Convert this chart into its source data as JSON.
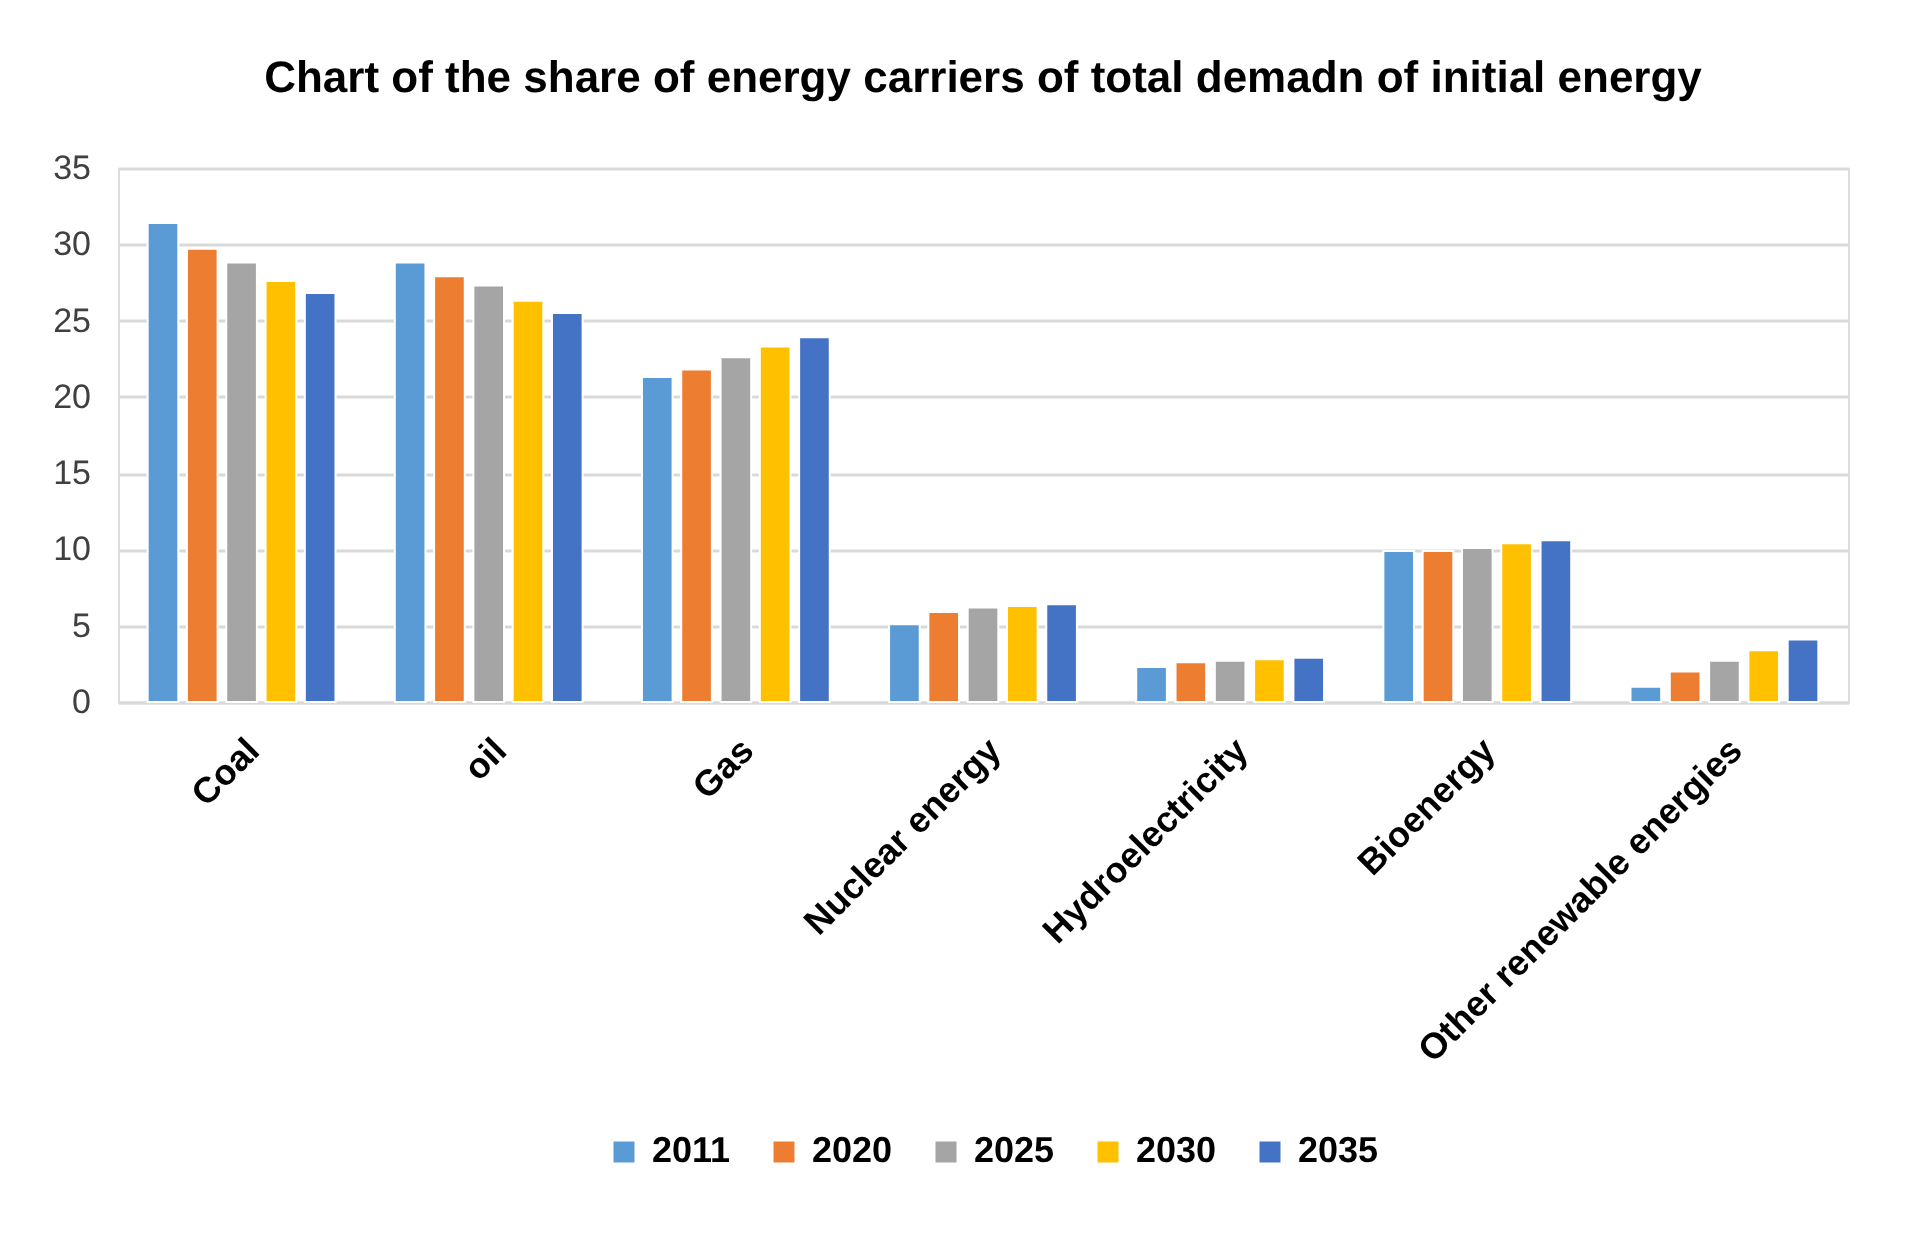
{
  "chart_data": {
    "type": "bar",
    "title": "Chart of the share of energy carriers of total demadn of initial energy",
    "categories": [
      "Coal",
      "oil",
      "Gas",
      "Nuclear energy",
      "Hydroelectricity",
      "Bioenergy",
      "Other renewable energies"
    ],
    "series": [
      {
        "name": "2011",
        "color": "#5b9bd5",
        "values": [
          31.4,
          28.8,
          21.3,
          5.1,
          2.3,
          9.9,
          1.0
        ]
      },
      {
        "name": "2020",
        "color": "#ed7d31",
        "values": [
          29.7,
          27.9,
          21.8,
          5.9,
          2.6,
          9.9,
          2.0
        ]
      },
      {
        "name": "2025",
        "color": "#a5a5a5",
        "values": [
          28.8,
          27.3,
          22.6,
          6.2,
          2.7,
          10.1,
          2.7
        ]
      },
      {
        "name": "2030",
        "color": "#ffc000",
        "values": [
          27.6,
          26.3,
          23.3,
          6.3,
          2.8,
          10.4,
          3.4
        ]
      },
      {
        "name": "2035",
        "color": "#4472c4",
        "values": [
          26.8,
          25.5,
          23.9,
          6.4,
          2.9,
          10.6,
          4.1
        ]
      }
    ],
    "ylim": [
      0,
      35
    ],
    "yticks": [
      0,
      5,
      10,
      15,
      20,
      25,
      30,
      35
    ],
    "grid": "y",
    "legend": "bottom"
  }
}
